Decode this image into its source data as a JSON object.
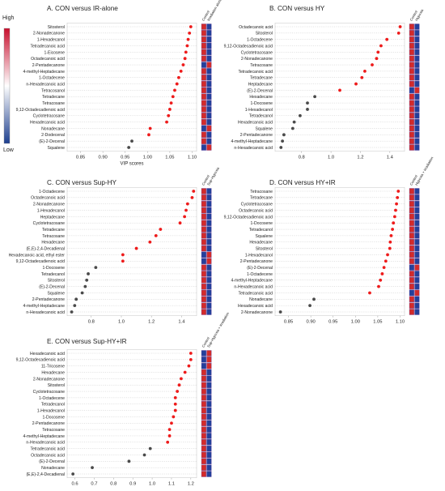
{
  "legend": {
    "high_label": "High",
    "low_label": "Low",
    "gradient_colors": [
      "#c8102e",
      "#ffffff",
      "#1d3f8f"
    ]
  },
  "colors": {
    "significant": "#ee1b1b",
    "nonsignificant": "#4a4a4a",
    "cell_red": "#d22b2b",
    "cell_blue": "#24409a",
    "cell_purple": "#6b4aa0"
  },
  "chart_data": [
    {
      "type": "scatter",
      "title": "A. CON versus IR-alone",
      "xlabel": "VIP scores",
      "xlim": [
        0.82,
        1.11
      ],
      "xticks": [
        0.85,
        0.9,
        0.95,
        1.0,
        1.05,
        1.1
      ],
      "tick_labels": [
        "0.85",
        "0.90",
        "0.95",
        "1.00",
        "1.05",
        "1.10"
      ],
      "column_labels": [
        "Control",
        "Irradiation alone"
      ],
      "grid": true,
      "labels": [
        "Sitosterol",
        "2-Nonadecanone",
        "1-Hexadecanol",
        "Tetradecanoic acid",
        "1-Eicosene",
        "Octadecanoic acid",
        "2-Pentadecanone",
        "4-methyl-Heptadecane",
        "1-Octadecene",
        "n-Hexadecanoic acid",
        "Tetracosanol",
        "Tetradecane",
        "Tetracosane",
        "9,12-Octadecadienoic acid",
        "Cyclotetracosane",
        "Hexadecanoic acid",
        "Nonadecane",
        "2-Dodecenal",
        "(E)-2-Decenal",
        "Squalene"
      ],
      "values": [
        1.097,
        1.094,
        1.091,
        1.089,
        1.086,
        1.084,
        1.08,
        1.075,
        1.07,
        1.066,
        1.061,
        1.057,
        1.053,
        1.05,
        1.047,
        1.043,
        1.006,
        1.003,
        0.965,
        0.958
      ],
      "significant": [
        true,
        true,
        true,
        true,
        true,
        true,
        true,
        true,
        true,
        true,
        true,
        true,
        true,
        true,
        true,
        true,
        true,
        true,
        false,
        false
      ],
      "heat": [
        [
          "R",
          "B"
        ],
        [
          "R",
          "B"
        ],
        [
          "R",
          "B"
        ],
        [
          "R",
          "B"
        ],
        [
          "R",
          "B"
        ],
        [
          "R",
          "B"
        ],
        [
          "B",
          "R"
        ],
        [
          "R",
          "B"
        ],
        [
          "R",
          "B"
        ],
        [
          "R",
          "B"
        ],
        [
          "R",
          "B"
        ],
        [
          "R",
          "B"
        ],
        [
          "R",
          "B"
        ],
        [
          "R",
          "B"
        ],
        [
          "R",
          "B"
        ],
        [
          "R",
          "B"
        ],
        [
          "B",
          "R"
        ],
        [
          "R",
          "B"
        ],
        [
          "R",
          "B"
        ],
        [
          "B",
          "R"
        ]
      ]
    },
    {
      "type": "scatter",
      "title": "B. CON versus HY",
      "xlabel": "",
      "xlim": [
        0.62,
        1.5
      ],
      "xticks": [
        0.8,
        1.0,
        1.2,
        1.4
      ],
      "tick_labels": [
        "0.8",
        "1.0",
        "1.2",
        "1.4"
      ],
      "column_labels": [
        "Control",
        "Hypoxia"
      ],
      "grid": true,
      "labels": [
        "Octadecanoic acid",
        "Sitosterol",
        "1-Octadecene",
        "9,12-Octadecadienoic acid",
        "Cyclotetracosane",
        "2-Nonadecanone",
        "Tetracosane",
        "Tetradecanoic acid",
        "Tetradecane",
        "Heptadecane",
        "(E)-2-Decenal",
        "Hexadecane",
        "1-Docosene",
        "1-Hexadecanol",
        "Tetradecanol",
        "Hexadecanoic acid",
        "Squalene",
        "2-Pentadecanone",
        "4-methyl-Heptadecane",
        "n-Hexadecanoic acid"
      ],
      "values": [
        1.47,
        1.46,
        1.38,
        1.34,
        1.32,
        1.31,
        1.28,
        1.23,
        1.21,
        1.17,
        1.06,
        0.89,
        0.84,
        0.84,
        0.79,
        0.75,
        0.74,
        0.68,
        0.67,
        0.66
      ],
      "significant": [
        true,
        true,
        true,
        true,
        true,
        true,
        true,
        true,
        true,
        true,
        true,
        false,
        false,
        false,
        false,
        false,
        false,
        false,
        false,
        false
      ],
      "heat": [
        [
          "R",
          "B"
        ],
        [
          "R",
          "B"
        ],
        [
          "R",
          "B"
        ],
        [
          "R",
          "B"
        ],
        [
          "R",
          "B"
        ],
        [
          "R",
          "B"
        ],
        [
          "R",
          "B"
        ],
        [
          "R",
          "B"
        ],
        [
          "R",
          "B"
        ],
        [
          "R",
          "B"
        ],
        [
          "B",
          "R"
        ],
        [
          "R",
          "B"
        ],
        [
          "R",
          "B"
        ],
        [
          "R",
          "B"
        ],
        [
          "R",
          "B"
        ],
        [
          "R",
          "B"
        ],
        [
          "R",
          "B"
        ],
        [
          "R",
          "B"
        ],
        [
          "R",
          "B"
        ],
        [
          "R",
          "B"
        ]
      ]
    },
    {
      "type": "scatter",
      "title": "C. CON versus Sup-HY",
      "xlabel": "",
      "xlim": [
        0.64,
        1.5
      ],
      "xticks": [
        0.8,
        1.0,
        1.2,
        1.4
      ],
      "tick_labels": [
        "0.8",
        "1.0",
        "1.2",
        "1.4"
      ],
      "column_labels": [
        "Control",
        "Sup-Hypoxia"
      ],
      "grid": true,
      "labels": [
        "1-Octadecene",
        "Octadecanoic acid",
        "2-Nonadecanone",
        "1-Hexadecanol",
        "Heptadecane",
        "Cyclotetracosane",
        "Tetradecane",
        "Tetracosane",
        "Hexadecane",
        "(E,E)-2,4-Decadienal",
        "Hexadecanoic acid, ethyl ester",
        "9,12-Octadecadienoic acid",
        "1-Docosene",
        "Tetradecanol",
        "Sitosterol",
        "(E)-2-Decenal",
        "Squalene",
        "2-Pentadecanone",
        "4-methyl-Heptadecane",
        "n-Hexadecanoic acid"
      ],
      "values": [
        1.48,
        1.47,
        1.44,
        1.43,
        1.42,
        1.39,
        1.26,
        1.23,
        1.19,
        1.1,
        1.01,
        1.01,
        0.83,
        0.78,
        0.77,
        0.76,
        0.74,
        0.7,
        0.69,
        0.67
      ],
      "significant": [
        true,
        true,
        true,
        true,
        true,
        true,
        true,
        true,
        true,
        true,
        true,
        true,
        false,
        false,
        false,
        false,
        false,
        false,
        false,
        false
      ],
      "heat": [
        [
          "R",
          "B"
        ],
        [
          "R",
          "B"
        ],
        [
          "R",
          "B"
        ],
        [
          "R",
          "B"
        ],
        [
          "R",
          "B"
        ],
        [
          "R",
          "B"
        ],
        [
          "R",
          "B"
        ],
        [
          "R",
          "B"
        ],
        [
          "R",
          "B"
        ],
        [
          "R",
          "B"
        ],
        [
          "B",
          "R"
        ],
        [
          "B",
          "R"
        ],
        [
          "R",
          "B"
        ],
        [
          "R",
          "B"
        ],
        [
          "R",
          "B"
        ],
        [
          "R",
          "B"
        ],
        [
          "R",
          "B"
        ],
        [
          "R",
          "B"
        ],
        [
          "R",
          "B"
        ],
        [
          "R",
          "B"
        ]
      ]
    },
    {
      "type": "scatter",
      "title": "D. CON versus HY+IR",
      "xlabel": "",
      "xlim": [
        0.82,
        1.11
      ],
      "xticks": [
        0.85,
        0.9,
        0.95,
        1.0,
        1.05,
        1.1
      ],
      "tick_labels": [
        "0.85",
        "0.90",
        "0.95",
        "1.00",
        "1.05",
        "1.10"
      ],
      "column_labels": [
        "Control",
        "Hypoxia + irradiation"
      ],
      "grid": true,
      "labels": [
        "Tetracosane",
        "Tetradecane",
        "Cyclotetracosane",
        "Octadecanoic acid",
        "9,12-Octadecadienoic acid",
        "1-Docosene",
        "Tetradecanol",
        "Squalene",
        "Hexadecane",
        "Sitosterol",
        "1-Hexadecanol",
        "2-Pentadecanone",
        "(E)-2-Decenal",
        "1-Octadecene",
        "4-methyl-Heptadecane",
        "n-Hexadecanoic acid",
        "Tetradecanoic acid",
        "Nonadecane",
        "Hexadecanoic acid",
        "2-Nonadecanone"
      ],
      "values": [
        1.096,
        1.094,
        1.092,
        1.09,
        1.088,
        1.085,
        1.083,
        1.08,
        1.078,
        1.077,
        1.072,
        1.068,
        1.064,
        1.06,
        1.056,
        1.052,
        1.032,
        0.907,
        0.898,
        0.832
      ],
      "significant": [
        true,
        true,
        true,
        true,
        true,
        true,
        true,
        true,
        true,
        true,
        true,
        true,
        true,
        true,
        true,
        true,
        true,
        false,
        false,
        false
      ],
      "heat": [
        [
          "R",
          "B"
        ],
        [
          "R",
          "B"
        ],
        [
          "R",
          "B"
        ],
        [
          "R",
          "B"
        ],
        [
          "R",
          "B"
        ],
        [
          "R",
          "B"
        ],
        [
          "R",
          "B"
        ],
        [
          "R",
          "B"
        ],
        [
          "R",
          "B"
        ],
        [
          "R",
          "B"
        ],
        [
          "R",
          "B"
        ],
        [
          "R",
          "B"
        ],
        [
          "B",
          "R"
        ],
        [
          "R",
          "B"
        ],
        [
          "R",
          "B"
        ],
        [
          "R",
          "B"
        ],
        [
          "B",
          "R"
        ],
        [
          "R",
          "B"
        ],
        [
          "R",
          "B"
        ],
        [
          "R",
          "B"
        ]
      ]
    },
    {
      "type": "scatter",
      "title": "E. CON versus Sup-HY+IR",
      "xlabel": "",
      "xlim": [
        0.56,
        1.23
      ],
      "xticks": [
        0.6,
        0.7,
        0.8,
        0.9,
        1.0,
        1.1,
        1.2
      ],
      "tick_labels": [
        "0.6",
        "0.7",
        "0.8",
        "0.9",
        "1.0",
        "1.1",
        "1.2"
      ],
      "column_labels": [
        "Control",
        "Sup-Hypoxia + irradiation"
      ],
      "grid": true,
      "labels": [
        "Hexadecanoic acid",
        "9,12-Octadecadienoic acid",
        "11-Tricosene",
        "Hexadecane",
        "2-Nonadecanone",
        "Sitosterol",
        "Cyclotetracosane",
        "1-Octadecene",
        "Tetradecanol",
        "1-Hexadecanol",
        "1-Docosene",
        "2-Pentadecanone",
        "Tetracosane",
        "4-methyl-Heptadecane",
        "n-Hexadecanoic acid",
        "Tetradecanoic acid",
        "Octadecanoic acid",
        "(E)-2-Decenal",
        "Nonadecane",
        "(E,E)-2,4-Decadienal"
      ],
      "values": [
        1.2,
        1.2,
        1.19,
        1.17,
        1.15,
        1.14,
        1.13,
        1.12,
        1.12,
        1.12,
        1.11,
        1.1,
        1.09,
        1.09,
        1.08,
        0.99,
        0.96,
        0.88,
        0.69,
        0.59
      ],
      "significant": [
        true,
        true,
        true,
        true,
        true,
        true,
        true,
        true,
        true,
        true,
        true,
        true,
        true,
        true,
        true,
        false,
        false,
        false,
        false,
        false
      ],
      "heat": [
        [
          "B",
          "R"
        ],
        [
          "B",
          "R"
        ],
        [
          "B",
          "R"
        ],
        [
          "R",
          "B"
        ],
        [
          "R",
          "B"
        ],
        [
          "R",
          "B"
        ],
        [
          "R",
          "B"
        ],
        [
          "R",
          "B"
        ],
        [
          "R",
          "B"
        ],
        [
          "R",
          "B"
        ],
        [
          "R",
          "B"
        ],
        [
          "R",
          "B"
        ],
        [
          "R",
          "B"
        ],
        [
          "R",
          "B"
        ],
        [
          "R",
          "B"
        ],
        [
          "R",
          "B"
        ],
        [
          "R",
          "B"
        ],
        [
          "R",
          "B"
        ],
        [
          "R",
          "B"
        ],
        [
          "R",
          "B"
        ]
      ]
    }
  ]
}
